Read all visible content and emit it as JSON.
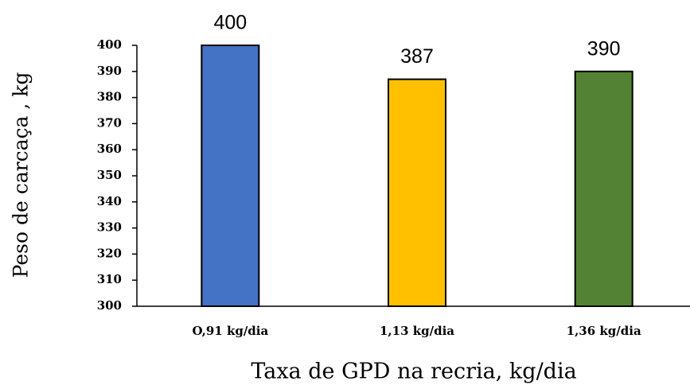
{
  "chart_data": {
    "type": "bar",
    "x_label": "Taxa de GPD na recria, kg/dia",
    "y_label": "Peso de carcaça , kg",
    "categories": [
      "O,91 kg/dia",
      "1,13 kg/dia",
      "1,36 kg/dia"
    ],
    "values": [
      400,
      387,
      390
    ],
    "colors": [
      "#4472c4",
      "#ffc000",
      "#548235"
    ],
    "ylim": [
      300,
      400
    ],
    "yticks": [
      300,
      310,
      320,
      330,
      340,
      350,
      360,
      370,
      380,
      390,
      400
    ],
    "grid": false
  }
}
